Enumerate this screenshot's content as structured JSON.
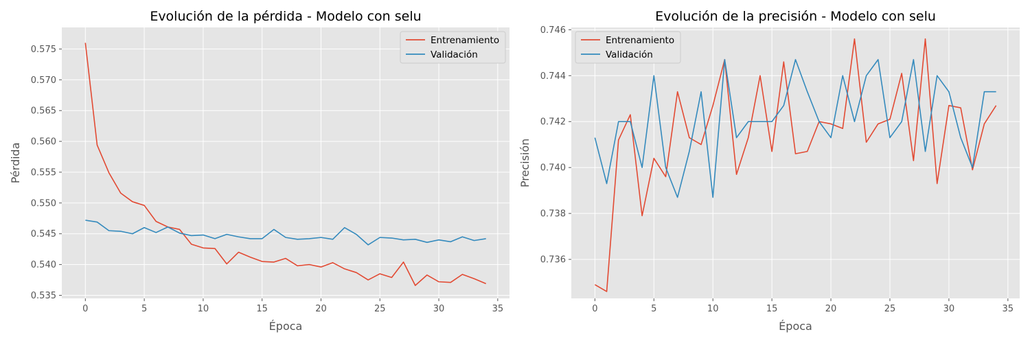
{
  "colors": {
    "train": "#E24A33",
    "val": "#348ABD",
    "panel_bg": "#E5E5E5",
    "grid": "#FFFFFF"
  },
  "chart_data": [
    {
      "type": "line",
      "title": "Evolución de la pérdida - Modelo con selu",
      "xlabel": "Época",
      "ylabel": "Pérdida",
      "xlim": [
        -2,
        36
      ],
      "ylim": [
        0.5345,
        0.5785
      ],
      "xticks": [
        0,
        5,
        10,
        15,
        20,
        25,
        30,
        35
      ],
      "yticks": [
        0.535,
        0.54,
        0.545,
        0.55,
        0.555,
        0.56,
        0.565,
        0.57,
        0.575
      ],
      "ytick_labels": [
        "0.535",
        "0.540",
        "0.545",
        "0.550",
        "0.555",
        "0.560",
        "0.565",
        "0.570",
        "0.575"
      ],
      "grid": true,
      "legend_position": "top-right",
      "x": [
        0,
        1,
        2,
        3,
        4,
        5,
        6,
        7,
        8,
        9,
        10,
        11,
        12,
        13,
        14,
        15,
        16,
        17,
        18,
        19,
        20,
        21,
        22,
        23,
        24,
        25,
        26,
        27,
        28,
        29,
        30,
        31,
        32,
        33,
        34
      ],
      "series": [
        {
          "name": "Entrenamiento",
          "color": "#E24A33",
          "values": [
            0.576,
            0.5594,
            0.5549,
            0.5516,
            0.5502,
            0.5496,
            0.547,
            0.5461,
            0.5457,
            0.5433,
            0.5427,
            0.5426,
            0.5401,
            0.542,
            0.5412,
            0.5405,
            0.5404,
            0.541,
            0.5398,
            0.54,
            0.5396,
            0.5403,
            0.5393,
            0.5387,
            0.5375,
            0.5385,
            0.5379,
            0.5404,
            0.5366,
            0.5383,
            0.5372,
            0.5371,
            0.5384,
            0.5377,
            0.5369
          ]
        },
        {
          "name": "Validación",
          "color": "#348ABD",
          "values": [
            0.5472,
            0.5469,
            0.5455,
            0.5454,
            0.545,
            0.546,
            0.5452,
            0.5461,
            0.5451,
            0.5447,
            0.5448,
            0.5442,
            0.5449,
            0.5445,
            0.5442,
            0.5442,
            0.5457,
            0.5444,
            0.5441,
            0.5442,
            0.5444,
            0.5441,
            0.546,
            0.5449,
            0.5432,
            0.5444,
            0.5443,
            0.544,
            0.5441,
            0.5436,
            0.544,
            0.5437,
            0.5445,
            0.5439,
            0.5442
          ]
        }
      ]
    },
    {
      "type": "line",
      "title": "Evolución de la precisión - Modelo con selu",
      "xlabel": "Época",
      "ylabel": "Precisión",
      "xlim": [
        -2,
        36
      ],
      "ylim": [
        0.7343,
        0.7461
      ],
      "xticks": [
        0,
        5,
        10,
        15,
        20,
        25,
        30,
        35
      ],
      "yticks": [
        0.736,
        0.738,
        0.74,
        0.742,
        0.744,
        0.746
      ],
      "ytick_labels": [
        "0.736",
        "0.738",
        "0.740",
        "0.742",
        "0.744",
        "0.746"
      ],
      "grid": true,
      "legend_position": "top-left",
      "x": [
        0,
        1,
        2,
        3,
        4,
        5,
        6,
        7,
        8,
        9,
        10,
        11,
        12,
        13,
        14,
        15,
        16,
        17,
        18,
        19,
        20,
        21,
        22,
        23,
        24,
        25,
        26,
        27,
        28,
        29,
        30,
        31,
        32,
        33,
        34
      ],
      "series": [
        {
          "name": "Entrenamiento",
          "color": "#E24A33",
          "values": [
            0.7349,
            0.7346,
            0.7412,
            0.7423,
            0.7379,
            0.7404,
            0.7396,
            0.7433,
            0.7413,
            0.741,
            0.7427,
            0.7447,
            0.7397,
            0.7413,
            0.744,
            0.7407,
            0.7446,
            0.7406,
            0.7407,
            0.742,
            0.7419,
            0.7417,
            0.7456,
            0.7411,
            0.7419,
            0.7421,
            0.7441,
            0.7403,
            0.7456,
            0.7393,
            0.7427,
            0.7426,
            0.7399,
            0.7419,
            0.7427
          ]
        },
        {
          "name": "Validación",
          "color": "#348ABD",
          "values": [
            0.7413,
            0.7393,
            0.742,
            0.742,
            0.74,
            0.744,
            0.74,
            0.7387,
            0.7407,
            0.7433,
            0.7387,
            0.7447,
            0.7413,
            0.742,
            0.742,
            0.742,
            0.7427,
            0.7447,
            0.7433,
            0.742,
            0.7413,
            0.744,
            0.742,
            0.744,
            0.7447,
            0.7413,
            0.742,
            0.7447,
            0.7407,
            0.744,
            0.7433,
            0.7413,
            0.74,
            0.7433,
            0.7433
          ]
        }
      ]
    }
  ]
}
